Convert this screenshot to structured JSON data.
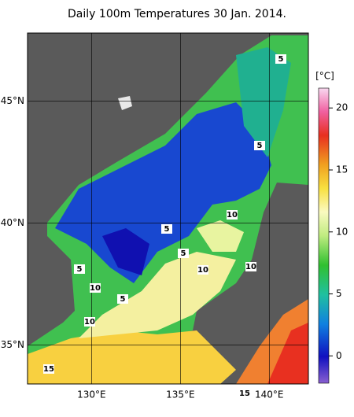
{
  "map": {
    "title": "Daily 100m Temperatures 30 Jan. 2014.",
    "lon_lim": [
      126.4,
      142.2
    ],
    "lat_lim": [
      33.4,
      47.8
    ],
    "lon_ticks": [
      {
        "value": 130,
        "label": "130°E"
      },
      {
        "value": 135,
        "label": "135°E"
      },
      {
        "value": 140,
        "label": "140°E"
      }
    ],
    "lat_ticks": [
      {
        "value": 35,
        "label": "35°N"
      },
      {
        "value": 40,
        "label": "40°N"
      },
      {
        "value": 45,
        "label": "45°N"
      }
    ],
    "colorbar": {
      "label": "[°C]",
      "lim": [
        -2.2,
        21.6
      ],
      "ticks": [
        0,
        5,
        10,
        15,
        20
      ]
    },
    "contour_labels": [
      5,
      5,
      10,
      5,
      5,
      10,
      10,
      5,
      10,
      5,
      10,
      15,
      15
    ]
  }
}
